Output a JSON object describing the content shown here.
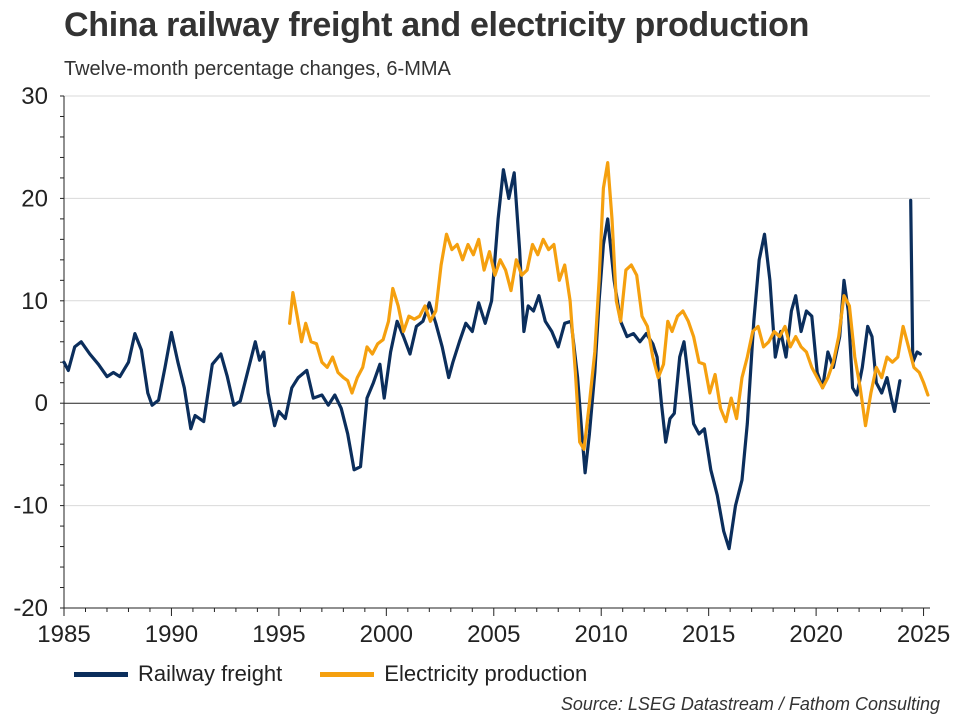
{
  "title": "China railway freight and electricity production",
  "subtitle": "Twelve-month percentage changes, 6-MMA",
  "source": "Source: LSEG Datastream / Fathom Consulting",
  "colors": {
    "railway": "#0b2e5c",
    "electricity": "#f5a00f",
    "grid": "#d9d9d9",
    "zero": "#222222"
  },
  "chart_data": {
    "type": "line",
    "title": "China railway freight and electricity production",
    "subtitle": "Twelve-month percentage changes, 6-MMA",
    "xlabel": "",
    "ylabel": "",
    "xlim": [
      1985,
      2025.3
    ],
    "ylim": [
      -20,
      30
    ],
    "x_ticks": [
      "1985",
      "1990",
      "1995",
      "2000",
      "2005",
      "2010",
      "2015",
      "2020",
      "2025"
    ],
    "y_ticks": [
      "30",
      "20",
      "10",
      "0",
      "-10",
      "-20"
    ],
    "grid": "horizontal",
    "legend": "bottom",
    "series": [
      {
        "name": "Railway freight",
        "color": "#0b2e5c",
        "points": [
          [
            1985.0,
            4.0
          ],
          [
            1985.2,
            3.2
          ],
          [
            1985.5,
            5.5
          ],
          [
            1985.8,
            6.0
          ],
          [
            1986.2,
            4.8
          ],
          [
            1986.6,
            3.8
          ],
          [
            1987.0,
            2.6
          ],
          [
            1987.3,
            3.0
          ],
          [
            1987.6,
            2.6
          ],
          [
            1988.0,
            4.0
          ],
          [
            1988.3,
            6.8
          ],
          [
            1988.6,
            5.2
          ],
          [
            1988.9,
            1.0
          ],
          [
            1989.1,
            -0.2
          ],
          [
            1989.4,
            0.3
          ],
          [
            1989.7,
            3.5
          ],
          [
            1990.0,
            6.9
          ],
          [
            1990.3,
            4.0
          ],
          [
            1990.6,
            1.5
          ],
          [
            1990.9,
            -2.5
          ],
          [
            1991.1,
            -1.2
          ],
          [
            1991.5,
            -1.8
          ],
          [
            1991.9,
            3.8
          ],
          [
            1992.3,
            4.8
          ],
          [
            1992.6,
            2.6
          ],
          [
            1992.9,
            -0.2
          ],
          [
            1993.2,
            0.2
          ],
          [
            1993.6,
            3.5
          ],
          [
            1993.9,
            6.0
          ],
          [
            1994.1,
            4.2
          ],
          [
            1994.3,
            5.0
          ],
          [
            1994.5,
            1.0
          ],
          [
            1994.8,
            -2.2
          ],
          [
            1995.0,
            -0.8
          ],
          [
            1995.3,
            -1.5
          ],
          [
            1995.6,
            1.5
          ],
          [
            1995.9,
            2.5
          ],
          [
            1996.3,
            3.2
          ],
          [
            1996.6,
            0.5
          ],
          [
            1997.0,
            0.8
          ],
          [
            1997.3,
            -0.2
          ],
          [
            1997.6,
            0.8
          ],
          [
            1997.9,
            -0.5
          ],
          [
            1998.2,
            -3.0
          ],
          [
            1998.5,
            -6.5
          ],
          [
            1998.8,
            -6.2
          ],
          [
            1999.1,
            0.5
          ],
          [
            1999.4,
            2.0
          ],
          [
            1999.7,
            3.8
          ],
          [
            1999.9,
            0.5
          ],
          [
            2000.2,
            5.0
          ],
          [
            2000.5,
            8.0
          ],
          [
            2000.8,
            6.5
          ],
          [
            2001.1,
            4.8
          ],
          [
            2001.4,
            7.5
          ],
          [
            2001.7,
            8.0
          ],
          [
            2002.0,
            9.8
          ],
          [
            2002.3,
            7.8
          ],
          [
            2002.6,
            5.5
          ],
          [
            2002.9,
            2.5
          ],
          [
            2003.1,
            4.0
          ],
          [
            2003.4,
            6.0
          ],
          [
            2003.7,
            7.8
          ],
          [
            2004.0,
            7.0
          ],
          [
            2004.3,
            9.8
          ],
          [
            2004.6,
            7.8
          ],
          [
            2004.9,
            10.0
          ],
          [
            2005.2,
            18.0
          ],
          [
            2005.45,
            22.8
          ],
          [
            2005.7,
            20.0
          ],
          [
            2005.95,
            22.5
          ],
          [
            2006.2,
            15.0
          ],
          [
            2006.4,
            7.0
          ],
          [
            2006.6,
            9.5
          ],
          [
            2006.85,
            9.0
          ],
          [
            2007.1,
            10.5
          ],
          [
            2007.4,
            8.0
          ],
          [
            2007.7,
            7.0
          ],
          [
            2008.0,
            5.5
          ],
          [
            2008.3,
            7.8
          ],
          [
            2008.6,
            8.0
          ],
          [
            2008.9,
            2.5
          ],
          [
            2009.1,
            -3.0
          ],
          [
            2009.25,
            -6.8
          ],
          [
            2009.45,
            -3.0
          ],
          [
            2009.7,
            3.0
          ],
          [
            2009.9,
            10.0
          ],
          [
            2010.1,
            15.5
          ],
          [
            2010.3,
            18.0
          ],
          [
            2010.6,
            12.0
          ],
          [
            2010.9,
            8.0
          ],
          [
            2011.2,
            6.5
          ],
          [
            2011.5,
            6.8
          ],
          [
            2011.8,
            6.0
          ],
          [
            2012.1,
            6.8
          ],
          [
            2012.4,
            5.8
          ],
          [
            2012.6,
            4.5
          ],
          [
            2012.8,
            0.0
          ],
          [
            2013.0,
            -3.8
          ],
          [
            2013.2,
            -1.5
          ],
          [
            2013.4,
            -1.0
          ],
          [
            2013.65,
            4.5
          ],
          [
            2013.85,
            6.0
          ],
          [
            2014.05,
            2.5
          ],
          [
            2014.3,
            -2.0
          ],
          [
            2014.55,
            -3.0
          ],
          [
            2014.8,
            -2.5
          ],
          [
            2015.1,
            -6.5
          ],
          [
            2015.4,
            -9.0
          ],
          [
            2015.7,
            -12.5
          ],
          [
            2015.95,
            -14.2
          ],
          [
            2016.25,
            -10.0
          ],
          [
            2016.55,
            -7.5
          ],
          [
            2016.8,
            -2.0
          ],
          [
            2017.1,
            8.0
          ],
          [
            2017.35,
            14.0
          ],
          [
            2017.6,
            16.5
          ],
          [
            2017.85,
            12.0
          ],
          [
            2018.1,
            4.5
          ],
          [
            2018.35,
            7.0
          ],
          [
            2018.6,
            4.5
          ],
          [
            2018.85,
            9.0
          ],
          [
            2019.05,
            10.5
          ],
          [
            2019.3,
            7.0
          ],
          [
            2019.55,
            9.0
          ],
          [
            2019.8,
            8.5
          ],
          [
            2020.05,
            3.0
          ],
          [
            2020.3,
            1.5
          ],
          [
            2020.55,
            5.0
          ],
          [
            2020.8,
            3.5
          ],
          [
            2021.1,
            6.5
          ],
          [
            2021.3,
            12.0
          ],
          [
            2021.5,
            9.0
          ],
          [
            2021.7,
            1.5
          ],
          [
            2021.9,
            0.8
          ],
          [
            2022.15,
            3.5
          ],
          [
            2022.4,
            7.5
          ],
          [
            2022.6,
            6.5
          ],
          [
            2022.8,
            2.0
          ],
          [
            2023.05,
            1.0
          ],
          [
            2023.3,
            2.5
          ],
          [
            2023.5,
            0.5
          ],
          [
            2023.65,
            -0.8
          ],
          [
            2023.9,
            2.2
          ]
        ]
      },
      {
        "name": "Railway freight",
        "color": "#0b2e5c",
        "points": [
          [
            2024.4,
            19.8
          ],
          [
            2024.5,
            4.0
          ],
          [
            2024.7,
            5.0
          ],
          [
            2024.85,
            4.8
          ]
        ]
      },
      {
        "name": "Electricity production",
        "color": "#f5a00f",
        "points": [
          [
            1995.5,
            7.8
          ],
          [
            1995.65,
            10.8
          ],
          [
            1995.85,
            8.5
          ],
          [
            1996.05,
            6.0
          ],
          [
            1996.25,
            7.8
          ],
          [
            1996.5,
            6.0
          ],
          [
            1996.75,
            5.8
          ],
          [
            1997.0,
            4.0
          ],
          [
            1997.25,
            3.5
          ],
          [
            1997.5,
            4.5
          ],
          [
            1997.75,
            3.0
          ],
          [
            1998.0,
            2.5
          ],
          [
            1998.2,
            2.2
          ],
          [
            1998.4,
            1.0
          ],
          [
            1998.65,
            2.5
          ],
          [
            1998.9,
            3.5
          ],
          [
            1999.1,
            5.5
          ],
          [
            1999.35,
            4.8
          ],
          [
            1999.6,
            5.8
          ],
          [
            1999.85,
            6.2
          ],
          [
            2000.1,
            8.0
          ],
          [
            2000.3,
            11.2
          ],
          [
            2000.55,
            9.5
          ],
          [
            2000.8,
            7.0
          ],
          [
            2001.05,
            8.5
          ],
          [
            2001.3,
            8.2
          ],
          [
            2001.55,
            8.5
          ],
          [
            2001.8,
            9.5
          ],
          [
            2002.05,
            8.0
          ],
          [
            2002.3,
            9.0
          ],
          [
            2002.55,
            13.5
          ],
          [
            2002.8,
            16.5
          ],
          [
            2003.05,
            15.0
          ],
          [
            2003.3,
            15.5
          ],
          [
            2003.55,
            14.0
          ],
          [
            2003.8,
            15.5
          ],
          [
            2004.05,
            14.5
          ],
          [
            2004.3,
            16.0
          ],
          [
            2004.55,
            13.0
          ],
          [
            2004.8,
            14.8
          ],
          [
            2005.05,
            12.5
          ],
          [
            2005.3,
            14.0
          ],
          [
            2005.55,
            13.0
          ],
          [
            2005.8,
            11.0
          ],
          [
            2006.05,
            14.0
          ],
          [
            2006.3,
            12.5
          ],
          [
            2006.55,
            13.0
          ],
          [
            2006.8,
            15.5
          ],
          [
            2007.05,
            14.5
          ],
          [
            2007.3,
            16.0
          ],
          [
            2007.55,
            15.0
          ],
          [
            2007.8,
            15.5
          ],
          [
            2008.05,
            12.0
          ],
          [
            2008.3,
            13.5
          ],
          [
            2008.55,
            10.0
          ],
          [
            2008.8,
            3.0
          ],
          [
            2009.0,
            -3.8
          ],
          [
            2009.2,
            -4.5
          ],
          [
            2009.45,
            0.0
          ],
          [
            2009.7,
            5.0
          ],
          [
            2009.9,
            12.0
          ],
          [
            2010.1,
            21.0
          ],
          [
            2010.3,
            23.5
          ],
          [
            2010.5,
            18.0
          ],
          [
            2010.7,
            10.0
          ],
          [
            2010.9,
            8.0
          ],
          [
            2011.15,
            13.0
          ],
          [
            2011.4,
            13.5
          ],
          [
            2011.65,
            12.5
          ],
          [
            2011.9,
            8.5
          ],
          [
            2012.15,
            7.5
          ],
          [
            2012.4,
            4.5
          ],
          [
            2012.65,
            2.5
          ],
          [
            2012.9,
            3.8
          ],
          [
            2013.1,
            8.0
          ],
          [
            2013.3,
            7.0
          ],
          [
            2013.55,
            8.5
          ],
          [
            2013.8,
            9.0
          ],
          [
            2014.05,
            8.0
          ],
          [
            2014.3,
            6.5
          ],
          [
            2014.55,
            4.0
          ],
          [
            2014.8,
            3.8
          ],
          [
            2015.05,
            1.0
          ],
          [
            2015.3,
            2.8
          ],
          [
            2015.55,
            -0.5
          ],
          [
            2015.8,
            -1.8
          ],
          [
            2016.05,
            0.5
          ],
          [
            2016.3,
            -1.5
          ],
          [
            2016.55,
            2.5
          ],
          [
            2016.8,
            4.5
          ],
          [
            2017.05,
            7.0
          ],
          [
            2017.3,
            7.5
          ],
          [
            2017.55,
            5.5
          ],
          [
            2017.8,
            6.0
          ],
          [
            2018.05,
            7.0
          ],
          [
            2018.3,
            6.5
          ],
          [
            2018.55,
            7.5
          ],
          [
            2018.8,
            5.5
          ],
          [
            2019.05,
            6.5
          ],
          [
            2019.3,
            5.5
          ],
          [
            2019.55,
            5.0
          ],
          [
            2019.8,
            3.5
          ],
          [
            2020.05,
            2.5
          ],
          [
            2020.3,
            1.5
          ],
          [
            2020.55,
            2.5
          ],
          [
            2020.8,
            4.0
          ],
          [
            2021.05,
            6.5
          ],
          [
            2021.3,
            10.5
          ],
          [
            2021.55,
            9.5
          ],
          [
            2021.8,
            4.5
          ],
          [
            2022.05,
            1.5
          ],
          [
            2022.3,
            -2.2
          ],
          [
            2022.55,
            1.0
          ],
          [
            2022.8,
            3.5
          ],
          [
            2023.05,
            2.5
          ],
          [
            2023.3,
            4.5
          ],
          [
            2023.55,
            4.0
          ],
          [
            2023.8,
            4.5
          ],
          [
            2024.05,
            7.5
          ],
          [
            2024.3,
            5.5
          ],
          [
            2024.55,
            3.5
          ],
          [
            2024.8,
            3.0
          ],
          [
            2025.0,
            2.0
          ],
          [
            2025.2,
            0.8
          ]
        ]
      }
    ]
  }
}
